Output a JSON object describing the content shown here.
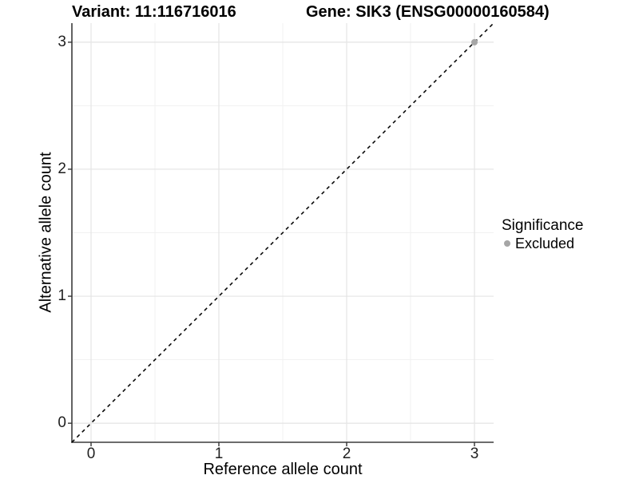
{
  "titles": {
    "variant": "Variant: 11:116716016",
    "gene": "Gene: SIK3 (ENSG00000160584)"
  },
  "chart_data": {
    "type": "scatter",
    "title": "Variant: 11:116716016    Gene: SIK3 (ENSG00000160584)",
    "xlabel": "Reference allele count",
    "ylabel": "Alternative allele count",
    "xlim": [
      -0.15,
      3.15
    ],
    "ylim": [
      -0.15,
      3.15
    ],
    "x_major_ticks": [
      0,
      1,
      2,
      3
    ],
    "y_major_ticks": [
      0,
      1,
      2,
      3
    ],
    "x_minor_ticks": [
      0.5,
      1.5,
      2.5
    ],
    "y_minor_ticks": [
      0.5,
      1.5,
      2.5
    ],
    "grid": "major+minor",
    "series": [
      {
        "name": "Excluded",
        "color": "#a6a6a6",
        "points": [
          {
            "x": 3,
            "y": 3
          }
        ]
      }
    ],
    "reference_line": {
      "type": "identity",
      "equation": "y = x",
      "style": "dashed",
      "color": "#0a0a0a",
      "x1": -0.15,
      "y1": -0.15,
      "x2": 3.15,
      "y2": 3.15
    },
    "legend": {
      "title": "Significance",
      "position": "right",
      "entries": [
        {
          "label": "Excluded",
          "color": "#a6a6a6",
          "marker": "circle"
        }
      ]
    }
  },
  "colors": {
    "background": "#ffffff",
    "grid_major": "#e4e4e4",
    "grid_minor": "#f1f1f1",
    "axis_line": "#3c3c3c",
    "tick_mark": "#333333",
    "text": "#000000"
  }
}
